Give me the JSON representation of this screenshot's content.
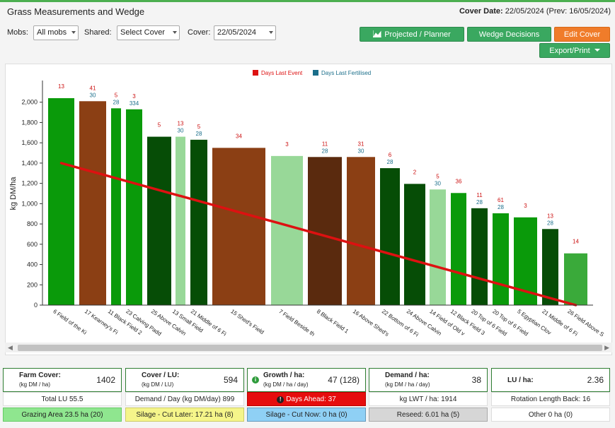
{
  "header": {
    "title": "Grass Measurements and Wedge",
    "cover_date_label": "Cover Date:",
    "cover_date_value": "22/05/2024",
    "prev_date": "(Prev: 16/05/2024)"
  },
  "filters": {
    "mobs_label": "Mobs:",
    "mobs_value": "All mobs",
    "shared_label": "Shared:",
    "shared_value": "Select Cover",
    "cover_label": "Cover:",
    "cover_value": "22/05/2024"
  },
  "buttons": {
    "projected": "Projected / Planner",
    "wedge": "Wedge Decisions",
    "edit": "Edit Cover",
    "export": "Export/Print"
  },
  "colors": {
    "brand_green": "#3aa860",
    "orange": "#f07c2a",
    "wedge_line": "#dd1111",
    "event_label": "#cc1111",
    "fert_label": "#1a6e8a"
  },
  "chart_data": {
    "type": "bar",
    "ylabel": "kg DM/ha",
    "ylim": [
      0,
      2200
    ],
    "yticks": [
      "0",
      "200",
      "400",
      "600",
      "800",
      "1,000",
      "1,200",
      "1,400",
      "1,600",
      "1,800",
      "2,000"
    ],
    "grid": false,
    "legend_position": "top-center",
    "legend": [
      {
        "name": "Days Last Event",
        "color": "#dd1111"
      },
      {
        "name": "Days Last Fertilised",
        "color": "#1a6e8a"
      }
    ],
    "categories": [
      "6 Field of the Ki",
      "17 Kearney's Fi",
      "11 Black Field 2",
      "23 Calving Padd",
      "25 Above Calvin",
      "13 Small Field",
      "21 Middle of 6 Fi",
      "15 Shed's Field",
      "7 Field Beside th",
      "8 Black Field 1",
      "16 Above Shed's",
      "22 Bottom of 6 Fi",
      "24 Above Calvin",
      "14 Field of Old v",
      "12 Black Field 3",
      "20 Top of 6 Field",
      "20 Top of 6 Field",
      "5 Egyptian Clov",
      "21 Middle of 6 Fi",
      "26 Field Above S"
    ],
    "values": [
      2040,
      2010,
      1940,
      1930,
      1660,
      1660,
      1630,
      1550,
      1470,
      1460,
      1460,
      1350,
      1195,
      1140,
      1105,
      955,
      905,
      865,
      750,
      510
    ],
    "bar_colors": [
      "#0a9a0a",
      "#8b3f14",
      "#0a9a0a",
      "#0a9a0a",
      "#064d06",
      "#98d898",
      "#064d06",
      "#8b3f14",
      "#98d898",
      "#5a2a0e",
      "#8b3f14",
      "#064d06",
      "#064d06",
      "#98d898",
      "#0a9a0a",
      "#064d06",
      "#0a9a0a",
      "#0a9a0a",
      "#064d06",
      "#3aaa3a"
    ],
    "days_last_event": [
      "13",
      "41",
      "5",
      "3",
      "5",
      "13",
      "5",
      "34",
      "3",
      "11",
      "31",
      "6",
      "2",
      "5",
      "36",
      "11",
      "61",
      "3",
      "13",
      "14"
    ],
    "days_last_fertilised": [
      "",
      "30",
      "28",
      "334",
      "",
      "30",
      "28",
      "",
      "",
      "28",
      "30",
      "28",
      "",
      "30",
      "",
      "28",
      "28",
      "",
      "28",
      ""
    ],
    "wedge_line": {
      "start": 1400,
      "end": 0
    }
  },
  "stats": {
    "farm_cover_label": "Farm Cover:",
    "farm_cover_sub": "(kg DM / ha)",
    "farm_cover_value": "1402",
    "cover_lu_label": "Cover / LU:",
    "cover_lu_sub": "(kg DM / LU)",
    "cover_lu_value": "594",
    "growth_label": "Growth / ha:",
    "growth_sub": "(kg DM / ha / day)",
    "growth_value": "47 (128)",
    "demand_label": "Demand / ha:",
    "demand_sub": "(kg DM / ha / day)",
    "demand_value": "38",
    "lu_ha_label": "LU / ha:",
    "lu_ha_value": "2.36",
    "total_lu": "Total LU 55.5",
    "demand_day": "Demand / Day (kg DM/day) 899",
    "days_ahead": "Days Ahead: 37",
    "kg_lwt": "kg LWT / ha: 1914",
    "rotation": "Rotation Length Back: 16",
    "grazing_area": "Grazing Area 23.5 ha (20)",
    "silage_later": "Silage - Cut Later: 17.21 ha (8)",
    "silage_now": "Silage - Cut Now: 0 ha (0)",
    "reseed": "Reseed: 6.01 ha (5)",
    "other": "Other 0 ha (0)"
  }
}
